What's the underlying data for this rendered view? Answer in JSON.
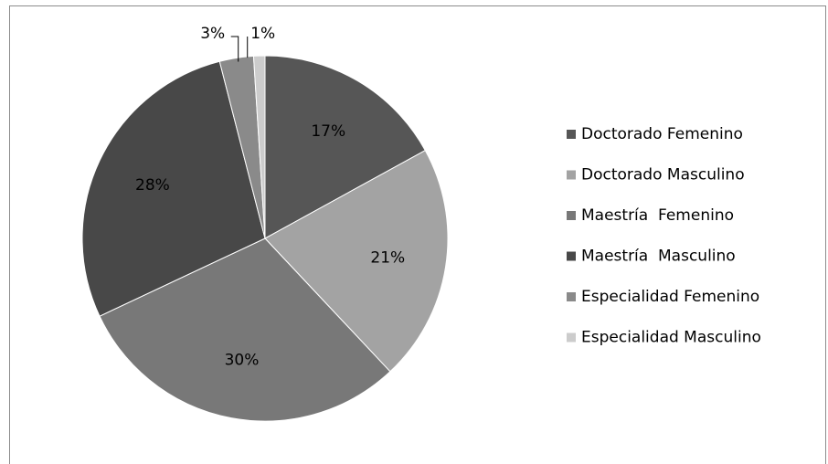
{
  "chart_data": {
    "type": "pie",
    "categories": [
      "Doctorado Femenino",
      "Doctorado Masculino",
      "Maestría  Femenino",
      "Maestría  Masculino",
      "Especialidad Femenino",
      "Especialidad Masculino"
    ],
    "values": [
      17,
      21,
      30,
      28,
      3,
      1
    ],
    "value_labels": [
      "17%",
      "21%",
      "30%",
      "28%",
      "3%",
      "1%"
    ],
    "colors": [
      "#565656",
      "#a3a3a3",
      "#787878",
      "#484848",
      "#8a8a8a",
      "#cccccc"
    ],
    "legend": "right"
  }
}
